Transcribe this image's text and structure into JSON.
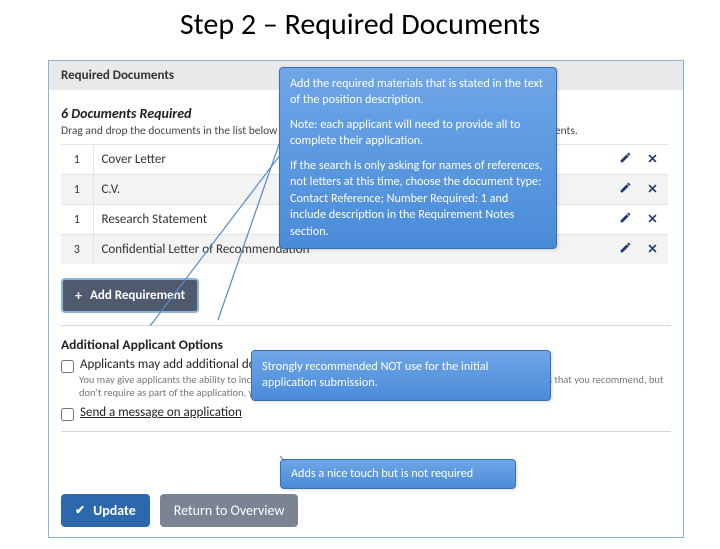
{
  "title": "Step 2 – Required Documents",
  "panel": {
    "header": "Required Documents",
    "count_text": "6 Documents Required",
    "desc_text": "Drag and drop the documents in the list below to change the order that applicants see the list of requirements.",
    "add_button": "Add Requirement",
    "section_h": "Additional Applicant Options",
    "opt1_label": "Applicants may add additional documents",
    "opt1_help": "You may give applicants the ability to include additional materials with their application. If you have documents that you recommend, but don't require as part of the application, you should select this choice.",
    "opt2_label": "Send a message on application",
    "update": "Update",
    "return": "Return to Overview"
  },
  "docs": [
    {
      "n": "1",
      "name": "Cover Letter"
    },
    {
      "n": "1",
      "name": "C.V."
    },
    {
      "n": "1",
      "name": "Research Statement"
    },
    {
      "n": "3",
      "name": "Confidential Letter of Recommendation"
    }
  ],
  "callouts": {
    "main_p1": "Add the required materials that is stated in the text of the position description.",
    "main_p2": "Note: each applicant will need to provide all to complete their application.",
    "main_p3": "If the search is only asking for names of references, not letters at this time, choose the document type: Contact Reference; Number Required: 1 and include description in the Requirement Notes section.",
    "mid": "Strongly recommended NOT use for the initial application submission.",
    "bottom": "Adds a nice touch but is not required"
  },
  "style": {
    "callout_bg_top": "#6fa6e7",
    "callout_bg_bottom": "#4a8bd8",
    "connector_color": "#5b8bc9"
  }
}
